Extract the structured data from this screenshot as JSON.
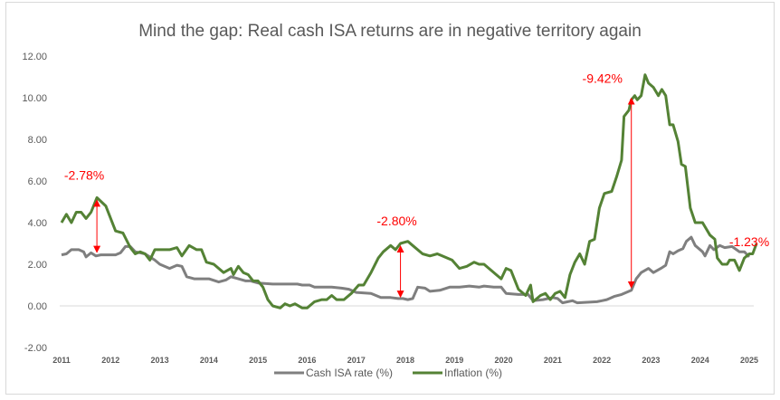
{
  "chart_data": {
    "type": "line",
    "title": "Mind the gap: Real cash ISA returns are in negative territory again",
    "xlabel": "",
    "ylabel": "",
    "xlim": [
      2011,
      2025
    ],
    "ylim": [
      -2,
      12
    ],
    "x_ticks": [
      "2011",
      "2012",
      "2013",
      "2014",
      "2015",
      "2016",
      "2017",
      "2018",
      "2019",
      "2020",
      "2021",
      "2022",
      "2023",
      "2024",
      "2025"
    ],
    "y_ticks": [
      "12.00",
      "10.00",
      "8.00",
      "6.00",
      "4.00",
      "2.00",
      "0.00",
      "-2.00"
    ],
    "grid": false,
    "legend_position": "bottom",
    "colors": {
      "cash": "#7f7f7f",
      "inflation": "#548235",
      "annotation": "#ff0000"
    },
    "series": [
      {
        "name": "Cash ISA rate (%)",
        "color": "#7f7f7f",
        "points": [
          [
            2011.0,
            2.45
          ],
          [
            2011.1,
            2.5
          ],
          [
            2011.2,
            2.7
          ],
          [
            2011.35,
            2.7
          ],
          [
            2011.45,
            2.6
          ],
          [
            2011.5,
            2.35
          ],
          [
            2011.6,
            2.55
          ],
          [
            2011.7,
            2.4
          ],
          [
            2011.8,
            2.45
          ],
          [
            2012.0,
            2.45
          ],
          [
            2012.1,
            2.45
          ],
          [
            2012.2,
            2.55
          ],
          [
            2012.3,
            2.85
          ],
          [
            2012.4,
            2.85
          ],
          [
            2012.5,
            2.6
          ],
          [
            2012.7,
            2.5
          ],
          [
            2012.9,
            2.2
          ],
          [
            2013.0,
            2.0
          ],
          [
            2013.2,
            1.8
          ],
          [
            2013.35,
            1.95
          ],
          [
            2013.45,
            1.9
          ],
          [
            2013.55,
            1.4
          ],
          [
            2013.7,
            1.3
          ],
          [
            2014.0,
            1.3
          ],
          [
            2014.2,
            1.15
          ],
          [
            2014.35,
            1.25
          ],
          [
            2014.45,
            1.4
          ],
          [
            2014.6,
            1.3
          ],
          [
            2014.75,
            1.2
          ],
          [
            2014.85,
            1.2
          ],
          [
            2015.0,
            1.1
          ],
          [
            2015.3,
            1.05
          ],
          [
            2015.8,
            1.05
          ],
          [
            2015.9,
            1.0
          ],
          [
            2016.05,
            1.0
          ],
          [
            2016.15,
            0.9
          ],
          [
            2016.35,
            0.9
          ],
          [
            2016.5,
            0.9
          ],
          [
            2016.7,
            0.85
          ],
          [
            2016.85,
            0.8
          ],
          [
            2017.0,
            0.65
          ],
          [
            2017.3,
            0.6
          ],
          [
            2017.5,
            0.4
          ],
          [
            2017.7,
            0.4
          ],
          [
            2017.85,
            0.35
          ],
          [
            2017.95,
            0.35
          ],
          [
            2018.05,
            0.3
          ],
          [
            2018.15,
            0.35
          ],
          [
            2018.25,
            0.9
          ],
          [
            2018.4,
            0.85
          ],
          [
            2018.5,
            0.7
          ],
          [
            2018.7,
            0.75
          ],
          [
            2018.9,
            0.9
          ],
          [
            2019.1,
            0.9
          ],
          [
            2019.3,
            0.95
          ],
          [
            2019.5,
            0.9
          ],
          [
            2019.6,
            0.95
          ],
          [
            2019.8,
            0.9
          ],
          [
            2019.95,
            0.9
          ],
          [
            2020.05,
            0.6
          ],
          [
            2020.3,
            0.55
          ],
          [
            2020.5,
            0.55
          ],
          [
            2020.6,
            0.25
          ],
          [
            2020.8,
            0.3
          ],
          [
            2021.0,
            0.4
          ],
          [
            2021.1,
            0.35
          ],
          [
            2021.2,
            0.15
          ],
          [
            2021.4,
            0.25
          ],
          [
            2021.5,
            0.15
          ],
          [
            2021.9,
            0.2
          ],
          [
            2022.0,
            0.25
          ],
          [
            2022.1,
            0.3
          ],
          [
            2022.25,
            0.45
          ],
          [
            2022.4,
            0.55
          ],
          [
            2022.6,
            0.75
          ],
          [
            2022.7,
            1.3
          ],
          [
            2022.8,
            1.6
          ],
          [
            2022.95,
            1.8
          ],
          [
            2023.05,
            1.6
          ],
          [
            2023.2,
            1.8
          ],
          [
            2023.3,
            1.95
          ],
          [
            2023.38,
            2.6
          ],
          [
            2023.45,
            2.5
          ],
          [
            2023.55,
            2.65
          ],
          [
            2023.65,
            2.75
          ],
          [
            2023.72,
            3.1
          ],
          [
            2023.82,
            3.3
          ],
          [
            2023.9,
            2.9
          ],
          [
            2024.05,
            2.6
          ],
          [
            2024.1,
            2.4
          ],
          [
            2024.2,
            2.9
          ],
          [
            2024.28,
            2.7
          ],
          [
            2024.4,
            2.9
          ],
          [
            2024.5,
            2.8
          ],
          [
            2024.65,
            2.85
          ],
          [
            2024.8,
            2.6
          ],
          [
            2024.9,
            2.6
          ],
          [
            2025.0,
            2.35
          ]
        ]
      },
      {
        "name": "Inflation (%)",
        "color": "#548235",
        "points": [
          [
            2011.0,
            4.0
          ],
          [
            2011.1,
            4.4
          ],
          [
            2011.2,
            4.0
          ],
          [
            2011.3,
            4.5
          ],
          [
            2011.4,
            4.5
          ],
          [
            2011.5,
            4.2
          ],
          [
            2011.6,
            4.5
          ],
          [
            2011.72,
            5.2
          ],
          [
            2011.9,
            4.8
          ],
          [
            2012.1,
            3.6
          ],
          [
            2012.25,
            3.5
          ],
          [
            2012.4,
            2.8
          ],
          [
            2012.5,
            2.5
          ],
          [
            2012.6,
            2.6
          ],
          [
            2012.7,
            2.5
          ],
          [
            2012.8,
            2.2
          ],
          [
            2012.9,
            2.7
          ],
          [
            2013.0,
            2.7
          ],
          [
            2013.2,
            2.7
          ],
          [
            2013.35,
            2.8
          ],
          [
            2013.45,
            2.4
          ],
          [
            2013.6,
            2.9
          ],
          [
            2013.75,
            2.7
          ],
          [
            2013.85,
            2.7
          ],
          [
            2013.95,
            2.1
          ],
          [
            2014.1,
            2.0
          ],
          [
            2014.3,
            1.6
          ],
          [
            2014.45,
            1.8
          ],
          [
            2014.5,
            1.5
          ],
          [
            2014.6,
            1.9
          ],
          [
            2014.7,
            1.6
          ],
          [
            2014.8,
            1.5
          ],
          [
            2014.9,
            1.2
          ],
          [
            2015.0,
            1.2
          ],
          [
            2015.1,
            0.9
          ],
          [
            2015.2,
            0.3
          ],
          [
            2015.3,
            0.0
          ],
          [
            2015.45,
            -0.1
          ],
          [
            2015.55,
            0.1
          ],
          [
            2015.65,
            0.0
          ],
          [
            2015.75,
            0.1
          ],
          [
            2015.9,
            -0.1
          ],
          [
            2016.0,
            -0.1
          ],
          [
            2016.15,
            0.2
          ],
          [
            2016.3,
            0.3
          ],
          [
            2016.4,
            0.3
          ],
          [
            2016.5,
            0.5
          ],
          [
            2016.6,
            0.3
          ],
          [
            2016.75,
            0.3
          ],
          [
            2016.9,
            0.6
          ],
          [
            2017.05,
            1.0
          ],
          [
            2017.15,
            1.0
          ],
          [
            2017.3,
            1.6
          ],
          [
            2017.45,
            2.3
          ],
          [
            2017.55,
            2.6
          ],
          [
            2017.7,
            2.9
          ],
          [
            2017.8,
            2.7
          ],
          [
            2017.9,
            3.0
          ],
          [
            2018.05,
            3.1
          ],
          [
            2018.15,
            2.9
          ],
          [
            2018.35,
            2.5
          ],
          [
            2018.5,
            2.4
          ],
          [
            2018.65,
            2.5
          ],
          [
            2018.75,
            2.4
          ],
          [
            2018.95,
            2.2
          ],
          [
            2019.1,
            1.8
          ],
          [
            2019.25,
            1.9
          ],
          [
            2019.4,
            2.1
          ],
          [
            2019.5,
            2.0
          ],
          [
            2019.6,
            2.0
          ],
          [
            2019.75,
            1.7
          ],
          [
            2019.85,
            1.5
          ],
          [
            2019.95,
            1.3
          ],
          [
            2020.05,
            1.8
          ],
          [
            2020.15,
            1.7
          ],
          [
            2020.3,
            0.8
          ],
          [
            2020.45,
            0.5
          ],
          [
            2020.55,
            1.0
          ],
          [
            2020.6,
            0.2
          ],
          [
            2020.75,
            0.5
          ],
          [
            2020.85,
            0.6
          ],
          [
            2020.95,
            0.3
          ],
          [
            2021.05,
            0.6
          ],
          [
            2021.15,
            0.7
          ],
          [
            2021.25,
            0.4
          ],
          [
            2021.35,
            1.5
          ],
          [
            2021.45,
            2.1
          ],
          [
            2021.55,
            2.5
          ],
          [
            2021.65,
            2.0
          ],
          [
            2021.75,
            3.1
          ],
          [
            2021.85,
            3.2
          ],
          [
            2021.95,
            4.7
          ],
          [
            2022.05,
            5.4
          ],
          [
            2022.2,
            5.5
          ],
          [
            2022.3,
            6.2
          ],
          [
            2022.4,
            7.0
          ],
          [
            2022.45,
            9.1
          ],
          [
            2022.55,
            9.4
          ],
          [
            2022.6,
            9.9
          ],
          [
            2022.67,
            10.1
          ],
          [
            2022.72,
            9.9
          ],
          [
            2022.8,
            10.1
          ],
          [
            2022.88,
            11.1
          ],
          [
            2022.95,
            10.7
          ],
          [
            2023.05,
            10.5
          ],
          [
            2023.15,
            10.1
          ],
          [
            2023.22,
            10.4
          ],
          [
            2023.3,
            10.1
          ],
          [
            2023.38,
            8.7
          ],
          [
            2023.45,
            8.7
          ],
          [
            2023.55,
            7.9
          ],
          [
            2023.62,
            6.8
          ],
          [
            2023.7,
            6.7
          ],
          [
            2023.8,
            4.7
          ],
          [
            2023.9,
            4.0
          ],
          [
            2024.05,
            4.0
          ],
          [
            2024.2,
            3.4
          ],
          [
            2024.3,
            3.2
          ],
          [
            2024.35,
            2.3
          ],
          [
            2024.45,
            2.0
          ],
          [
            2024.55,
            2.0
          ],
          [
            2024.6,
            2.2
          ],
          [
            2024.7,
            2.2
          ],
          [
            2024.8,
            1.7
          ],
          [
            2024.9,
            2.3
          ],
          [
            2025.0,
            2.5
          ],
          [
            2025.07,
            2.5
          ],
          [
            2025.15,
            3.0
          ]
        ]
      }
    ],
    "annotations": [
      {
        "text": "-2.78%",
        "x": 2011.72,
        "from": 2.45,
        "to": 5.2
      },
      {
        "text": "-2.80%",
        "x": 2017.9,
        "from": 0.3,
        "to": 3.0
      },
      {
        "text": "-9.42%",
        "x": 2022.6,
        "from": 0.75,
        "to": 10.1
      },
      {
        "text": "-1.23%",
        "x": 2025.0,
        "from": null,
        "to": null
      }
    ]
  }
}
